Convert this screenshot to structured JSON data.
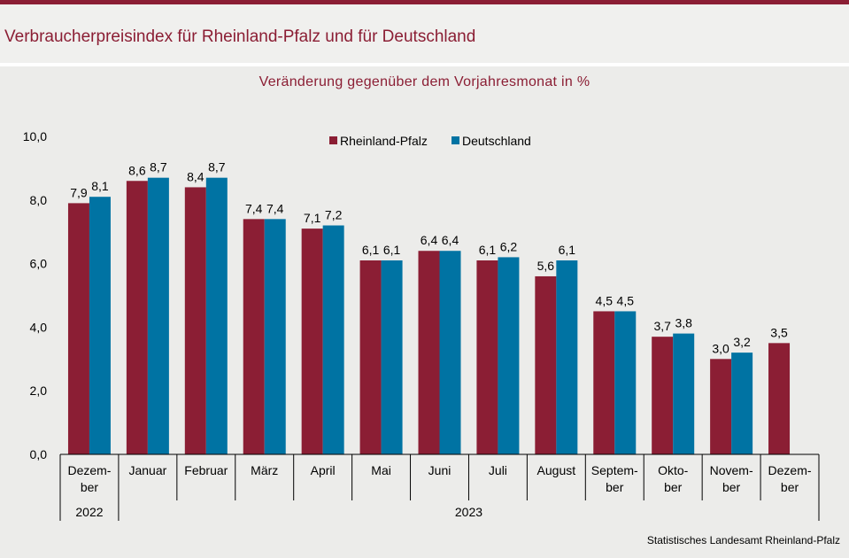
{
  "header": {
    "title": "Verbraucherpreisindex für Rheinland-Pfalz und für Deutschland"
  },
  "footer": {
    "source": "Statistisches Landesamt  Rheinland-Pfalz"
  },
  "colors": {
    "rheinland_pfalz": "#8b1e34",
    "deutschland": "#0073a3",
    "title": "#8b1e34"
  },
  "chart_data": {
    "type": "bar",
    "title": "Veränderung gegenüber dem Vorjahresmonat in %",
    "xlabel": "",
    "ylabel": "",
    "ylim": [
      0,
      10
    ],
    "yticks": [
      "0,0",
      "2,0",
      "4,0",
      "6,0",
      "8,0",
      "10,0"
    ],
    "grid": false,
    "legend_position": "top",
    "categories": [
      [
        "Dezem-",
        "ber"
      ],
      [
        "Januar"
      ],
      [
        "Februar"
      ],
      [
        "März"
      ],
      [
        "April"
      ],
      [
        "Mai"
      ],
      [
        "Juni"
      ],
      [
        "Juli"
      ],
      [
        "August"
      ],
      [
        "Septem-",
        "ber"
      ],
      [
        "Okto-",
        "ber"
      ],
      [
        "Novem-",
        "ber"
      ],
      [
        "Dezem-",
        "ber"
      ]
    ],
    "year_groups": [
      {
        "label": "2022",
        "start": 0,
        "end": 0
      },
      {
        "label": "2023",
        "start": 1,
        "end": 12
      }
    ],
    "series": [
      {
        "name": "Rheinland-Pfalz",
        "values": [
          7.9,
          8.6,
          8.4,
          7.4,
          7.1,
          6.1,
          6.4,
          6.1,
          5.6,
          4.5,
          3.7,
          3.0,
          3.5
        ],
        "labels": [
          "7,9",
          "8,6",
          "8,4",
          "7,4",
          "7,1",
          "6,1",
          "6,4",
          "6,1",
          "5,6",
          "4,5",
          "3,7",
          "3,0",
          "3,5"
        ]
      },
      {
        "name": "Deutschland",
        "values": [
          8.1,
          8.7,
          8.7,
          7.4,
          7.2,
          6.1,
          6.4,
          6.2,
          6.1,
          4.5,
          3.8,
          3.2,
          null
        ],
        "labels": [
          "8,1",
          "8,7",
          "8,7",
          "7,4",
          "7,2",
          "6,1",
          "6,4",
          "6,2",
          "6,1",
          "4,5",
          "3,8",
          "3,2",
          null
        ]
      }
    ]
  }
}
